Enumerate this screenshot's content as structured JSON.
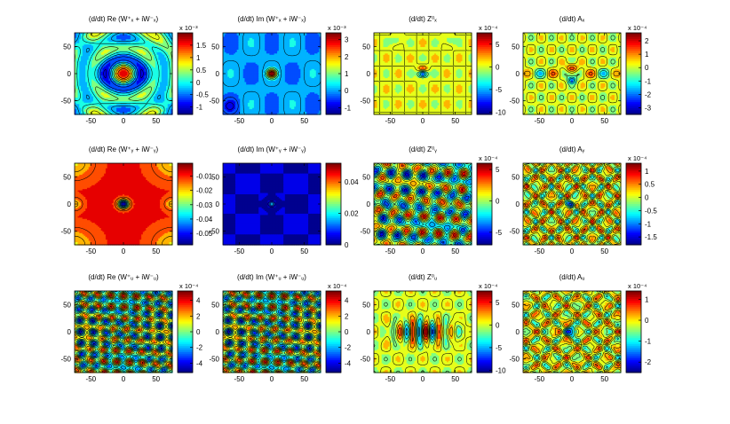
{
  "figure": {
    "colormap": [
      "#00008f",
      "#0000ff",
      "#0080ff",
      "#00ffff",
      "#80ff80",
      "#ffff00",
      "#ff8000",
      "#ff0000",
      "#800000"
    ],
    "contour_color": "#000000"
  },
  "chart_data": [
    {
      "type": "heatmap",
      "title": "(d/dt) Re (W⁺ₓ + iW⁻ₓ)",
      "x_ticks": [
        "-50",
        "0",
        "50"
      ],
      "y_ticks": [
        "50",
        "0",
        "-50"
      ],
      "xlim": [
        -75,
        75
      ],
      "ylim": [
        -75,
        75
      ],
      "colorbar": {
        "ticks": [
          "1.5",
          "1",
          "0.5",
          "0",
          "-0.5",
          "-1"
        ],
        "range": [
          -1.3,
          2.0
        ],
        "exponent_label": "x 10⁻³"
      },
      "pattern": "re_wx"
    },
    {
      "type": "heatmap",
      "title": "(d/dt) Im (W⁺ₓ + iW⁻ₓ)",
      "x_ticks": [
        "-50",
        "0",
        "50"
      ],
      "y_ticks": [
        "50",
        "0",
        "-50"
      ],
      "xlim": [
        -75,
        75
      ],
      "ylim": [
        -75,
        75
      ],
      "colorbar": {
        "ticks": [
          "3",
          "2",
          "1",
          "0",
          "-1"
        ],
        "range": [
          -1.4,
          3.4
        ],
        "exponent_label": "x 10⁻³"
      },
      "pattern": "im_wx"
    },
    {
      "type": "heatmap",
      "title": "(d/dt) Z⁰ₓ",
      "x_ticks": [
        "-50",
        "0",
        "50"
      ],
      "y_ticks": [
        "50",
        "0",
        "-50"
      ],
      "xlim": [
        -75,
        75
      ],
      "ylim": [
        -75,
        75
      ],
      "colorbar": {
        "ticks": [
          "5",
          "0",
          "-5",
          "-10"
        ],
        "range": [
          -10.5,
          7.5
        ],
        "exponent_label": "x 10⁻⁴"
      },
      "pattern": "zx"
    },
    {
      "type": "heatmap",
      "title": "(d/dt) Aₓ",
      "x_ticks": [
        "-50",
        "0",
        "50"
      ],
      "y_ticks": [
        "50",
        "0",
        "-50"
      ],
      "xlim": [
        -75,
        75
      ],
      "ylim": [
        -75,
        75
      ],
      "colorbar": {
        "ticks": [
          "2",
          "1",
          "0",
          "-1",
          "-2",
          "-3"
        ],
        "range": [
          -3.5,
          2.6
        ],
        "exponent_label": "x 10⁻⁴"
      },
      "pattern": "ax"
    },
    {
      "type": "heatmap",
      "title": "(d/dt) Re (W⁺ᵧ + iW⁻ᵧ)",
      "x_ticks": [
        "-50",
        "0",
        "50"
      ],
      "y_ticks": [
        "50",
        "0",
        "-50"
      ],
      "xlim": [
        -75,
        75
      ],
      "ylim": [
        -75,
        75
      ],
      "colorbar": {
        "ticks": [
          "-0.01",
          "-0.02",
          "-0.03",
          "-0.04",
          "-0.05"
        ],
        "range": [
          -0.058,
          -0.001
        ],
        "exponent_label": ""
      },
      "pattern": "re_wy"
    },
    {
      "type": "heatmap",
      "title": "(d/dt) Im (W⁺ᵧ + iW⁻ᵧ)",
      "x_ticks": [
        "-50",
        "0",
        "50"
      ],
      "y_ticks": [
        "50",
        "0",
        "-50"
      ],
      "xlim": [
        -75,
        75
      ],
      "ylim": [
        -75,
        75
      ],
      "colorbar": {
        "ticks": [
          "0.04",
          "0.02",
          "0"
        ],
        "range": [
          0,
          0.052
        ],
        "exponent_label": ""
      },
      "pattern": "im_wy"
    },
    {
      "type": "heatmap",
      "title": "(d/dt) Z⁰ᵧ",
      "x_ticks": [
        "-50",
        "0",
        "50"
      ],
      "y_ticks": [
        "50",
        "0",
        "-50"
      ],
      "xlim": [
        -75,
        75
      ],
      "ylim": [
        -75,
        75
      ],
      "colorbar": {
        "ticks": [
          "5",
          "0",
          "-5"
        ],
        "range": [
          -7,
          6
        ],
        "exponent_label": "x 10⁻⁴"
      },
      "pattern": "zy"
    },
    {
      "type": "heatmap",
      "title": "(d/dt) Aᵧ",
      "x_ticks": [
        "-50",
        "0",
        "50"
      ],
      "y_ticks": [
        "50",
        "0",
        "-50"
      ],
      "xlim": [
        -75,
        75
      ],
      "ylim": [
        -75,
        75
      ],
      "colorbar": {
        "ticks": [
          "1",
          "0.5",
          "0",
          "-0.5",
          "-1",
          "-1.5"
        ],
        "range": [
          -1.8,
          1.3
        ],
        "exponent_label": "x 10⁻⁴"
      },
      "pattern": "ay"
    },
    {
      "type": "heatmap",
      "title": "(d/dt) Re (W⁺ᵤ + iW⁻ᵤ)",
      "x_ticks": [
        "-50",
        "0",
        "50"
      ],
      "y_ticks": [
        "50",
        "0",
        "-50"
      ],
      "xlim": [
        -75,
        75
      ],
      "ylim": [
        -75,
        75
      ],
      "colorbar": {
        "ticks": [
          "4",
          "2",
          "0",
          "-2",
          "-4"
        ],
        "range": [
          -5.2,
          5.2
        ],
        "exponent_label": "x 10⁻⁴"
      },
      "pattern": "wz"
    },
    {
      "type": "heatmap",
      "title": "(d/dt) Im (W⁺ᵤ + iW⁻ᵤ)",
      "x_ticks": [
        "-50",
        "0",
        "50"
      ],
      "y_ticks": [
        "50",
        "0",
        "-50"
      ],
      "xlim": [
        -75,
        75
      ],
      "ylim": [
        -75,
        75
      ],
      "colorbar": {
        "ticks": [
          "4",
          "2",
          "0",
          "-2",
          "-4"
        ],
        "range": [
          -5.2,
          5.2
        ],
        "exponent_label": "x 10⁻⁴"
      },
      "pattern": "wz"
    },
    {
      "type": "heatmap",
      "title": "(d/dt) Z⁰ᵤ",
      "x_ticks": [
        "-50",
        "0",
        "50"
      ],
      "y_ticks": [
        "50",
        "0",
        "-50"
      ],
      "xlim": [
        -75,
        75
      ],
      "ylim": [
        -75,
        75
      ],
      "colorbar": {
        "ticks": [
          "5",
          "0",
          "-5",
          "-10"
        ],
        "range": [
          -10.5,
          7.5
        ],
        "exponent_label": "x 10⁻⁴"
      },
      "pattern": "zz"
    },
    {
      "type": "heatmap",
      "title": "(d/dt) Aᵤ",
      "x_ticks": [
        "-50",
        "0",
        "50"
      ],
      "y_ticks": [
        "50",
        "0",
        "-50"
      ],
      "xlim": [
        -75,
        75
      ],
      "ylim": [
        -75,
        75
      ],
      "colorbar": {
        "ticks": [
          "1",
          "0",
          "-1",
          "-2"
        ],
        "range": [
          -2.5,
          1.4
        ],
        "exponent_label": "x 10⁻⁴"
      },
      "pattern": "az"
    }
  ]
}
